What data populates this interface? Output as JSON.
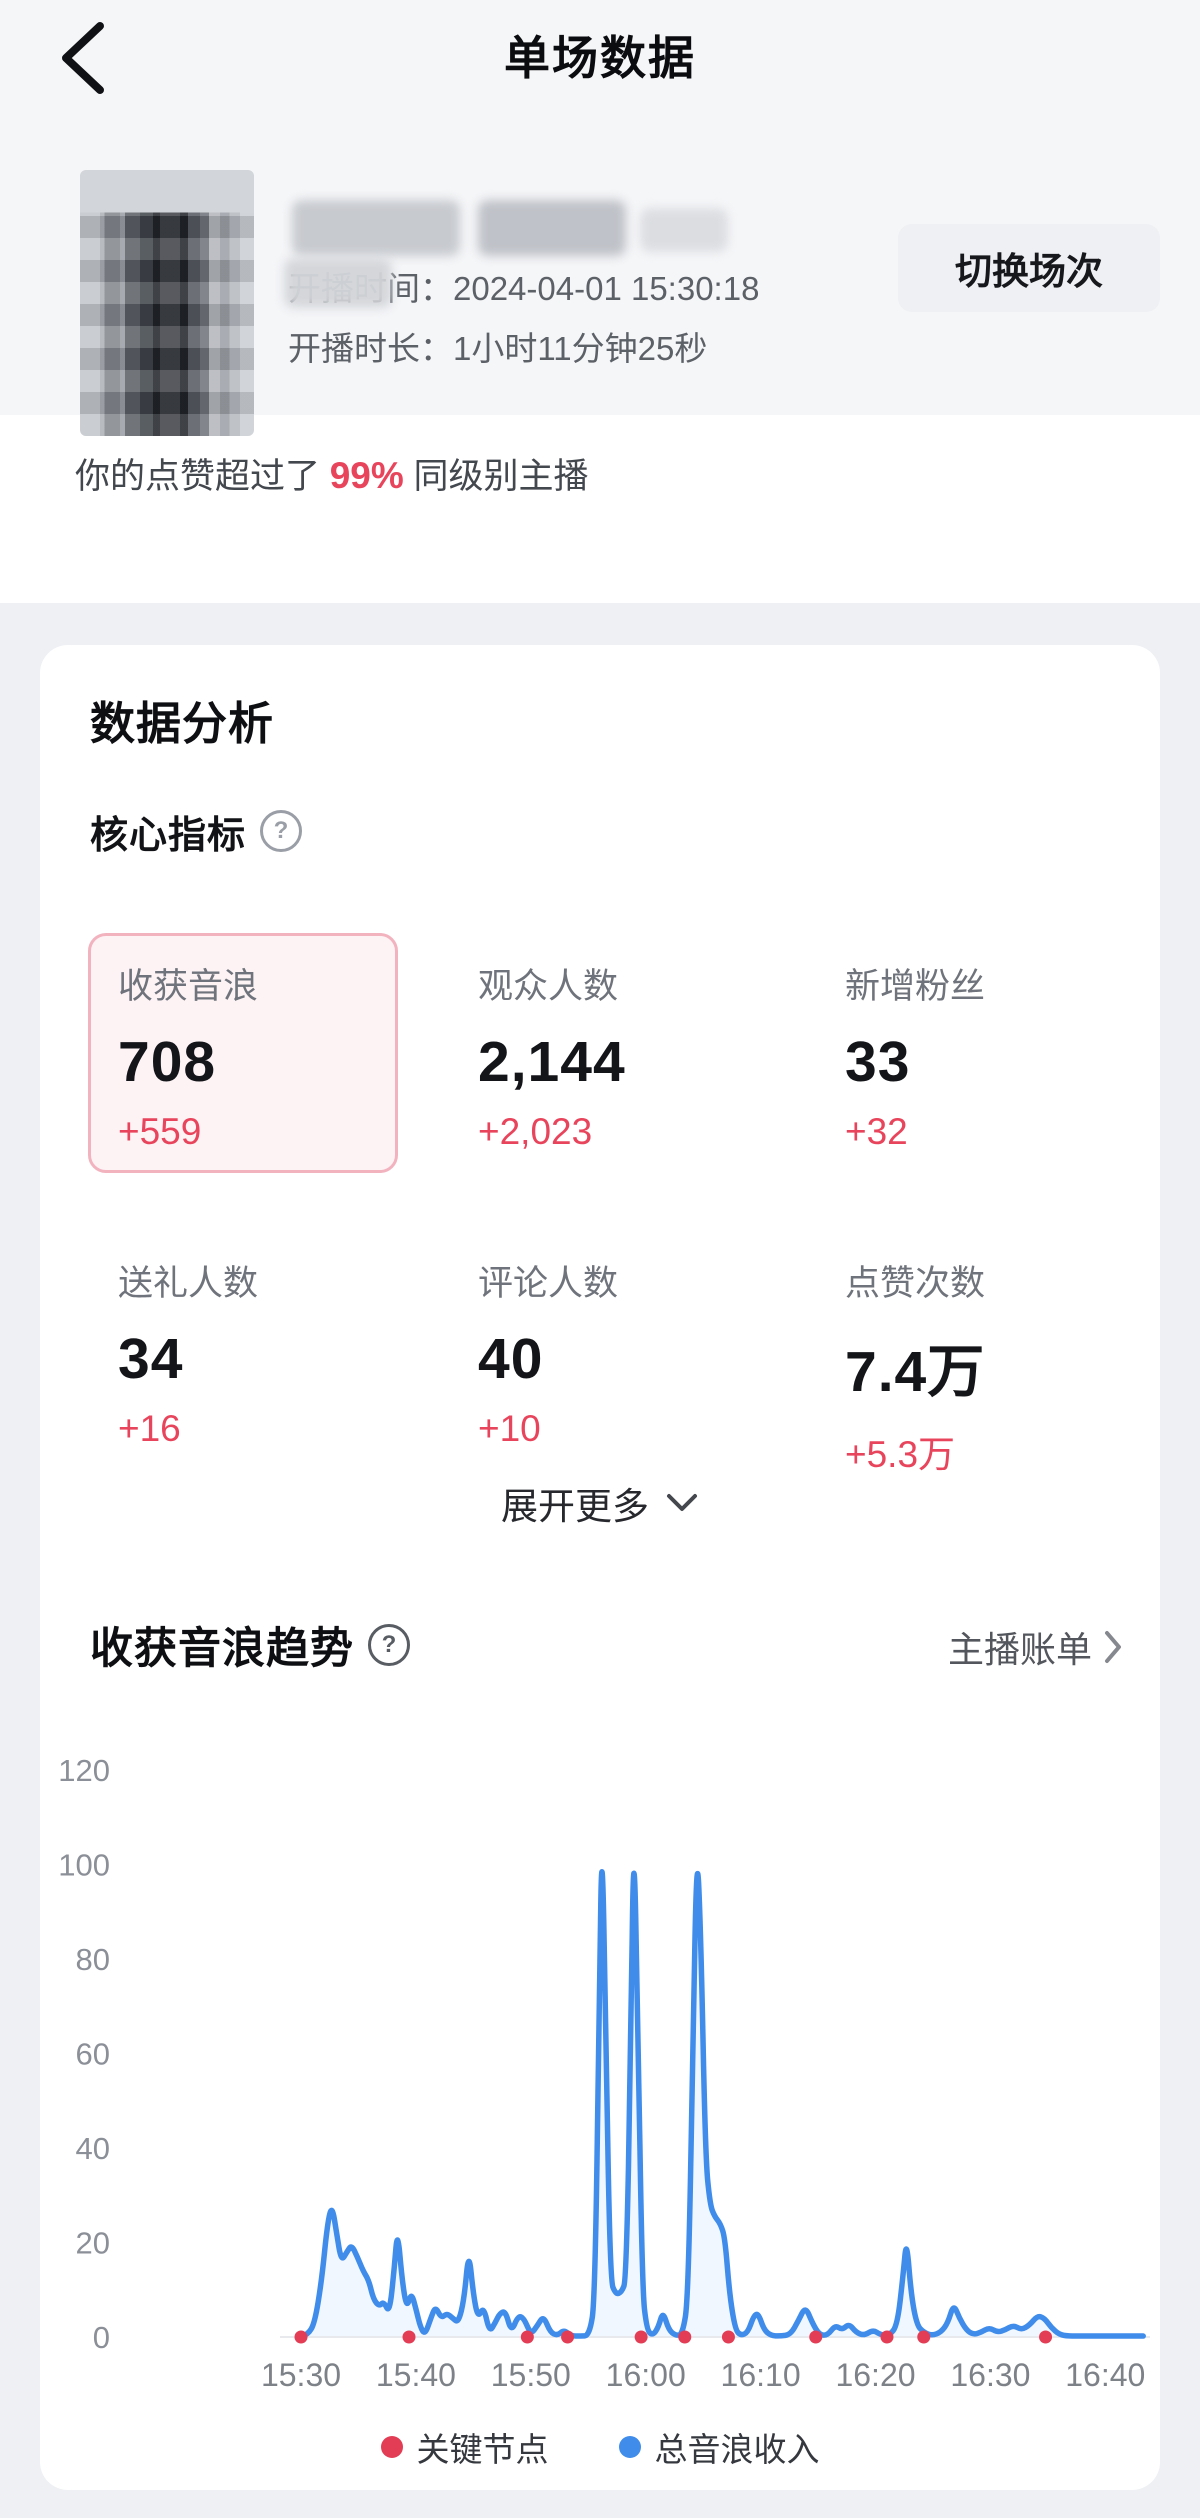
{
  "header": {
    "title": "单场数据"
  },
  "profile": {
    "start_time_line": "开播时间：2024-04-01 15:30:18",
    "duration_line": "开播时长：1小时11分钟25秒",
    "switch_button": "切换场次"
  },
  "rank_banner": {
    "prefix": "你的点赞超过了 ",
    "percent": "99%",
    "suffix": " 同级别主播"
  },
  "analysis": {
    "title": "数据分析",
    "core_title": "核心指标",
    "help_icon": "?",
    "metrics": [
      {
        "label": "收获音浪",
        "value": "708",
        "delta": "+559",
        "selected": true
      },
      {
        "label": "观众人数",
        "value": "2,144",
        "delta": "+2,023",
        "selected": false
      },
      {
        "label": "新增粉丝",
        "value": "33",
        "delta": "+32",
        "selected": false
      },
      {
        "label": "送礼人数",
        "value": "34",
        "delta": "+16",
        "selected": false
      },
      {
        "label": "评论人数",
        "value": "40",
        "delta": "+10",
        "selected": false
      },
      {
        "label": "点赞次数",
        "value": "7.4万",
        "delta": "+5.3万",
        "selected": false
      }
    ],
    "expand_more": "展开更多"
  },
  "trend": {
    "title": "收获音浪趋势",
    "help_icon": "?",
    "bill_link": "主播账单",
    "legend": [
      {
        "name": "关键节点",
        "color": "#e23d55"
      },
      {
        "name": "总音浪收入",
        "color": "#3f8ceb"
      }
    ]
  },
  "colors": {
    "accent_red": "#e8455c",
    "line_blue": "#3f8ceb",
    "key_node_red": "#e23d55",
    "selected_card_border": "#f2b3bf",
    "selected_card_bg": "#fdf3f5",
    "page_bg": "#eef0f4",
    "top_bg": "#f5f6f8"
  },
  "chart_data": {
    "type": "line",
    "title": "收获音浪趋势",
    "xlabel": "",
    "ylabel": "",
    "ylim": [
      0,
      120
    ],
    "y_ticks": [
      0,
      20,
      40,
      60,
      80,
      100,
      120
    ],
    "x_unit": "minutes after 15:30",
    "x_tick_minutes": [
      0,
      10,
      20,
      30,
      40,
      50,
      60,
      70
    ],
    "x_tick_labels": [
      "15:30",
      "15:40",
      "15:50",
      "16:00",
      "16:10",
      "16:20",
      "16:30",
      "16:40"
    ],
    "grid": false,
    "legend_position": "bottom",
    "series": [
      {
        "name": "总音浪收入",
        "color": "#3f8ceb",
        "fill": "rgba(63,140,235,0.07)",
        "points": [
          [
            0,
            0
          ],
          [
            0.6,
            0.5
          ],
          [
            1.2,
            3
          ],
          [
            1.8,
            12
          ],
          [
            2.3,
            24
          ],
          [
            2.7,
            28
          ],
          [
            3.1,
            22
          ],
          [
            3.5,
            16
          ],
          [
            4.0,
            18
          ],
          [
            4.4,
            19.5
          ],
          [
            4.9,
            17
          ],
          [
            5.4,
            14
          ],
          [
            5.9,
            12
          ],
          [
            6.3,
            8
          ],
          [
            6.8,
            6.5
          ],
          [
            7.2,
            7.5
          ],
          [
            7.7,
            5
          ],
          [
            8.1,
            14
          ],
          [
            8.4,
            23
          ],
          [
            8.8,
            12
          ],
          [
            9.2,
            6
          ],
          [
            9.6,
            9.5
          ],
          [
            10.0,
            6
          ],
          [
            10.4,
            2
          ],
          [
            10.8,
            0.5
          ],
          [
            11.3,
            4
          ],
          [
            11.7,
            6.5
          ],
          [
            12.2,
            4
          ],
          [
            12.7,
            5
          ],
          [
            13.2,
            4
          ],
          [
            13.7,
            3
          ],
          [
            14.2,
            8
          ],
          [
            14.6,
            18.5
          ],
          [
            15.0,
            9
          ],
          [
            15.4,
            4
          ],
          [
            15.9,
            6.5
          ],
          [
            16.4,
            1
          ],
          [
            16.9,
            3
          ],
          [
            17.3,
            5
          ],
          [
            17.8,
            5.5
          ],
          [
            18.3,
            1
          ],
          [
            18.9,
            4.5
          ],
          [
            19.4,
            4
          ],
          [
            20.0,
            0.5
          ],
          [
            20.6,
            2.5
          ],
          [
            21.1,
            4.5
          ],
          [
            21.7,
            1
          ],
          [
            22.3,
            0.3
          ],
          [
            22.9,
            1.5
          ],
          [
            23.5,
            0.2
          ],
          [
            24.3,
            0.2
          ],
          [
            25.1,
            0.3
          ],
          [
            25.6,
            8
          ],
          [
            26.0,
            80
          ],
          [
            26.2,
            106
          ],
          [
            26.5,
            70
          ],
          [
            26.9,
            12
          ],
          [
            27.4,
            9
          ],
          [
            27.9,
            9.5
          ],
          [
            28.3,
            12
          ],
          [
            28.7,
            60
          ],
          [
            28.95,
            109
          ],
          [
            29.3,
            70
          ],
          [
            29.7,
            10
          ],
          [
            30.1,
            1.5
          ],
          [
            30.6,
            0.3
          ],
          [
            31.1,
            2
          ],
          [
            31.5,
            5.5
          ],
          [
            32.0,
            1.5
          ],
          [
            32.6,
            0.3
          ],
          [
            33.2,
            0.5
          ],
          [
            33.7,
            8
          ],
          [
            34.1,
            60
          ],
          [
            34.45,
            105
          ],
          [
            34.8,
            85
          ],
          [
            35.2,
            38
          ],
          [
            35.6,
            28
          ],
          [
            36.0,
            25.5
          ],
          [
            36.5,
            24
          ],
          [
            36.9,
            21
          ],
          [
            37.3,
            9
          ],
          [
            37.8,
            1.5
          ],
          [
            38.3,
            0.3
          ],
          [
            38.9,
            1
          ],
          [
            39.4,
            4.5
          ],
          [
            39.8,
            5
          ],
          [
            40.3,
            1.5
          ],
          [
            40.9,
            0.3
          ],
          [
            41.7,
            0.2
          ],
          [
            42.6,
            0.5
          ],
          [
            43.3,
            3.5
          ],
          [
            43.9,
            6.5
          ],
          [
            44.5,
            3
          ],
          [
            45.1,
            0.5
          ],
          [
            45.8,
            0.3
          ],
          [
            46.5,
            2.5
          ],
          [
            47.1,
            1.5
          ],
          [
            47.7,
            2.8
          ],
          [
            48.3,
            1
          ],
          [
            49.0,
            0.3
          ],
          [
            49.8,
            1.5
          ],
          [
            50.4,
            0.5
          ],
          [
            51.2,
            0.3
          ],
          [
            51.9,
            2.5
          ],
          [
            52.4,
            13
          ],
          [
            52.7,
            21
          ],
          [
            53.1,
            9
          ],
          [
            53.6,
            2.5
          ],
          [
            54.2,
            1
          ],
          [
            54.9,
            0.3
          ],
          [
            55.7,
            1
          ],
          [
            56.3,
            3
          ],
          [
            56.8,
            7
          ],
          [
            57.3,
            4
          ],
          [
            57.9,
            1.5
          ],
          [
            58.5,
            0.5
          ],
          [
            59.2,
            1
          ],
          [
            59.9,
            2
          ],
          [
            60.6,
            1
          ],
          [
            61.3,
            1.5
          ],
          [
            62.0,
            2.5
          ],
          [
            62.7,
            1.5
          ],
          [
            63.4,
            2.5
          ],
          [
            64.1,
            4.5
          ],
          [
            64.7,
            4
          ],
          [
            65.3,
            2
          ],
          [
            66.0,
            0.5
          ],
          [
            66.8,
            0.2
          ],
          [
            68,
            0.2
          ],
          [
            69.5,
            0.2
          ],
          [
            71,
            0.2
          ],
          [
            72.5,
            0.2
          ],
          [
            73.3,
            0.2
          ]
        ]
      }
    ],
    "key_nodes": {
      "name": "关键节点",
      "color": "#e23d55",
      "minutes": [
        0,
        9.4,
        19.7,
        23.2,
        29.6,
        33.4,
        37.2,
        44.8,
        51.0,
        54.2,
        64.8
      ]
    }
  }
}
